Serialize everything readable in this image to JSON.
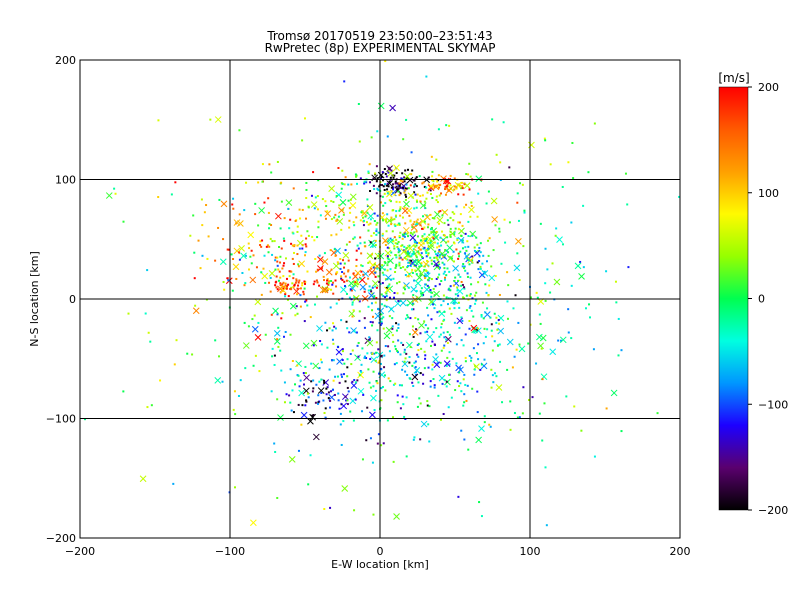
{
  "title_line1": "Tromsø 20170519 23:50:00–23:51:43",
  "title_line2": "RwPretec (8p) EXPERIMENTAL SKYMAP",
  "chart_data": {
    "type": "scatter",
    "xlabel": "E-W location [km]",
    "ylabel": "N-S location [km]",
    "xlim": [
      -200,
      200
    ],
    "ylim": [
      -200,
      200
    ],
    "x_ticks": [
      -200,
      -100,
      0,
      100,
      200
    ],
    "y_ticks": [
      -200,
      -100,
      0,
      100,
      200
    ],
    "x_tick_labels": [
      "−200",
      "−100",
      "0",
      "100",
      "200"
    ],
    "y_tick_labels": [
      "−200",
      "−100",
      "0",
      "100",
      "200"
    ],
    "grid": true,
    "colorbar": {
      "label": "[m/s]",
      "range": [
        -200,
        200
      ],
      "ticks": [
        200,
        100,
        0,
        -100,
        -200
      ],
      "tick_labels": [
        "200",
        "100",
        "0",
        "−100",
        "−200"
      ],
      "colormap": [
        "#000000",
        "#5a006e",
        "#1d00ff",
        "#0096ff",
        "#00ffe0",
        "#00ff50",
        "#96ff00",
        "#fffa00",
        "#ffa000",
        "#ff5a00",
        "#ff0000"
      ]
    },
    "markers": [
      "dot",
      "x"
    ],
    "clusters": [
      {
        "x": 10,
        "y": 97,
        "sx": 10,
        "sy": 5,
        "v": -190,
        "n": 110
      },
      {
        "x": 45,
        "y": 95,
        "sx": 10,
        "sy": 5,
        "v": 110,
        "n": 60
      },
      {
        "x": 25,
        "y": 45,
        "sx": 18,
        "sy": 15,
        "v": 20,
        "n": 260
      },
      {
        "x": 30,
        "y": 20,
        "sx": 25,
        "sy": 18,
        "v": -40,
        "n": 180
      },
      {
        "x": -60,
        "y": 12,
        "sx": 6,
        "sy": 4,
        "v": 180,
        "n": 45
      },
      {
        "x": -30,
        "y": 15,
        "sx": 15,
        "sy": 10,
        "v": 140,
        "n": 70
      },
      {
        "x": -40,
        "y": -80,
        "sx": 10,
        "sy": 10,
        "v": -150,
        "n": 60
      },
      {
        "x": 5,
        "y": -40,
        "sx": 35,
        "sy": 35,
        "v": -80,
        "n": 320
      },
      {
        "x": 0,
        "y": 70,
        "sx": 35,
        "sy": 25,
        "v": 60,
        "n": 220
      },
      {
        "x": 60,
        "y": -20,
        "sx": 30,
        "sy": 40,
        "v": -20,
        "n": 180
      },
      {
        "x": -70,
        "y": 40,
        "sx": 30,
        "sy": 30,
        "v": 120,
        "n": 150
      },
      {
        "x": 0,
        "y": 0,
        "sx": 80,
        "sy": 80,
        "v": 0,
        "n": 500
      }
    ]
  }
}
